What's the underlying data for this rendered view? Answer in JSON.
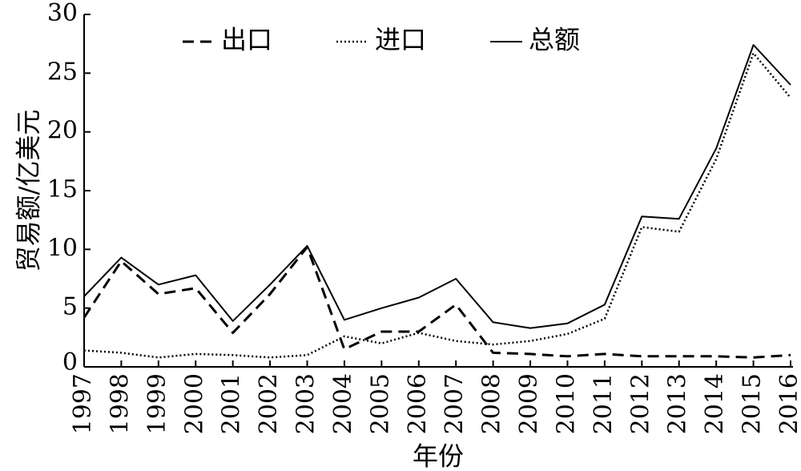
{
  "chart_data": {
    "type": "line",
    "xlabel": "年份",
    "ylabel": "贸易额/亿美元",
    "ylim": [
      0,
      30
    ],
    "yticks": [
      "0",
      "5",
      "10",
      "15",
      "20",
      "25",
      "30"
    ],
    "categories": [
      "1997",
      "1998",
      "1999",
      "2000",
      "2001",
      "2002",
      "2003",
      "2004",
      "2005",
      "2006",
      "2007",
      "2008",
      "2009",
      "2010",
      "2011",
      "2012",
      "2013",
      "2014",
      "2015",
      "2016"
    ],
    "legend_position": "top",
    "grid": false,
    "series": [
      {
        "name": "出口",
        "style": "dashed",
        "values": [
          4.2,
          9.0,
          6.2,
          6.7,
          2.9,
          6.2,
          10.2,
          1.5,
          3.0,
          3.0,
          5.3,
          1.2,
          1.1,
          0.9,
          1.1,
          0.9,
          0.9,
          0.9,
          0.8,
          1.0
        ]
      },
      {
        "name": "进口",
        "style": "dotted",
        "values": [
          1.4,
          1.2,
          0.8,
          1.1,
          1.0,
          0.8,
          1.0,
          2.6,
          2.0,
          2.9,
          2.2,
          1.9,
          2.2,
          2.8,
          4.1,
          11.9,
          11.5,
          17.7,
          26.7,
          22.9
        ]
      },
      {
        "name": "总额",
        "style": "solid",
        "values": [
          6.0,
          9.3,
          7.0,
          7.8,
          3.9,
          7.0,
          10.3,
          4.0,
          5.0,
          5.9,
          7.5,
          3.8,
          3.3,
          3.7,
          5.3,
          12.8,
          12.6,
          18.6,
          27.4,
          24.0
        ]
      }
    ]
  }
}
